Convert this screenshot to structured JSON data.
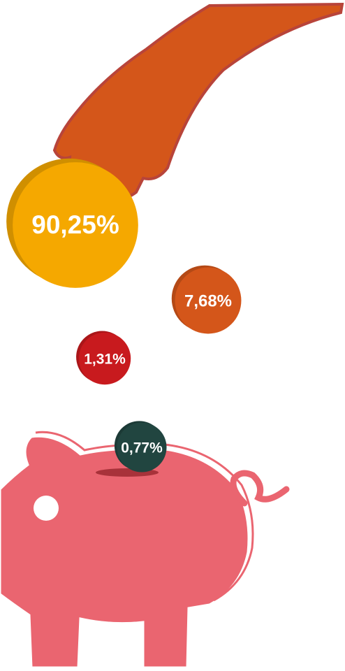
{
  "chart_data": {
    "type": "coins",
    "values": [
      90.25,
      7.68,
      1.31,
      0.77
    ],
    "value_labels": [
      "90,25%",
      "7,68%",
      "1,31%",
      "0,77%"
    ],
    "colors": [
      "#f5a800",
      "#d4561a",
      "#c81a1e",
      "#214540"
    ]
  }
}
